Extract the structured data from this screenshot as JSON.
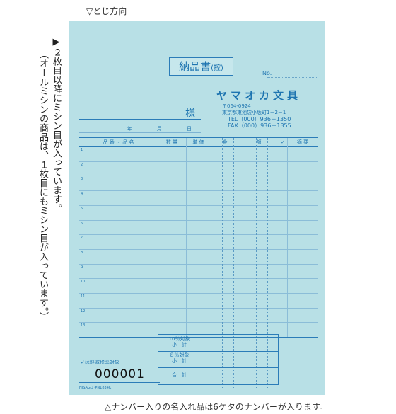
{
  "captions": {
    "binding": "▽とじ方向",
    "vertical_1": "▶２枚目以降にミシン目が入っています。",
    "vertical_2": "（オールミシンの商品は、１枚目にもミシン目が入っています。）",
    "bottom": "△ナンバー入りの名入れ品は6ケタのナンバーが入ります。"
  },
  "form": {
    "title": "納品書",
    "title_suffix": "(控)",
    "no_label": "No.",
    "honorific": "様",
    "date": {
      "year": "年",
      "month": "月",
      "day": "日"
    }
  },
  "company": {
    "name": "ヤマオカ文具",
    "postal": "〒064-0924",
    "address": "東京都東池袋小坂町1－2－1",
    "tel": "TEL（000）936－1350",
    "fax": "FAX（000）936－1355"
  },
  "table": {
    "headers": [
      "品 番 ・ 品 名",
      "数 量",
      "単 価",
      "金",
      "額",
      "✓",
      "摘 要"
    ],
    "row_numbers": [
      "1",
      "2",
      "3",
      "4",
      "5",
      "6",
      "7",
      "8",
      "9",
      "10",
      "11",
      "12",
      "13"
    ]
  },
  "summary": {
    "tax10_line1": "10％対象",
    "tax10_line2": "小　計",
    "tax8_line1": "８％対象",
    "tax8_line2": "小　計",
    "total": "合　計",
    "reduced_note": "✓は軽減税率対象",
    "serial": "000001",
    "product_code": "HISAGO #N1834K"
  },
  "colors": {
    "sheet": "#b8e0e6",
    "ink": "#1d74b0",
    "rule": "#2b7cb8"
  }
}
